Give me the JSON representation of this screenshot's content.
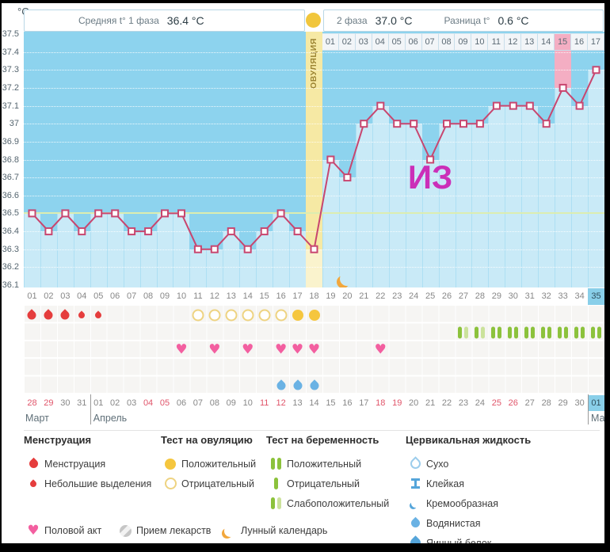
{
  "header": {
    "unit": "°C",
    "phase1_label": "Средняя t° 1 фаза",
    "phase1_value": "36.4 °C",
    "phase2_label": "2 фаза",
    "phase2_value": "37.0 °C",
    "diff_label": "Разница t°",
    "diff_value": "0.6 °C"
  },
  "chart_data": {
    "type": "line",
    "ylabel": "°C",
    "ylim": [
      36.1,
      37.5
    ],
    "yticks": [
      "37.5",
      "37.4",
      "37.3",
      "37.2",
      "37.1",
      "37",
      "36.9",
      "36.8",
      "36.7",
      "36.6",
      "36.5",
      "36.4",
      "36.3",
      "36.2",
      "36.1"
    ],
    "cycle_days": [
      "01",
      "02",
      "03",
      "04",
      "05",
      "06",
      "07",
      "08",
      "09",
      "10",
      "11",
      "12",
      "13",
      "14",
      "15",
      "16",
      "17",
      "18",
      "19",
      "20",
      "21",
      "22",
      "23",
      "24",
      "25",
      "26",
      "27",
      "28",
      "29",
      "30",
      "31",
      "32",
      "33",
      "34",
      "35"
    ],
    "temperatures": [
      36.5,
      36.4,
      36.5,
      36.4,
      36.5,
      36.5,
      36.4,
      36.4,
      36.5,
      36.5,
      36.3,
      36.3,
      36.4,
      36.3,
      36.4,
      36.5,
      36.4,
      36.3,
      36.8,
      36.7,
      37.0,
      37.1,
      37.0,
      37.0,
      36.8,
      37.0,
      37.0,
      37.0,
      37.1,
      37.1,
      37.1,
      37.0,
      37.2,
      37.1,
      37.3
    ],
    "coverline": 36.5,
    "ovulation_day": 18,
    "ovulation_label": "ОВУЛЯЦИЯ",
    "highlight_day": 33,
    "phase2_days": [
      "01",
      "02",
      "03",
      "04",
      "05",
      "06",
      "07",
      "08",
      "09",
      "10",
      "11",
      "12",
      "13",
      "14",
      "15",
      "16",
      "17"
    ],
    "phase2_highlight": "15",
    "current_day": "35",
    "moon_day": 20,
    "annotation": {
      "text": "ИЗ",
      "color": "#cb2fb8"
    },
    "symbols": {
      "menstruation": [
        {
          "day": 1,
          "intensity": "heavy"
        },
        {
          "day": 2,
          "intensity": "heavy"
        },
        {
          "day": 3,
          "intensity": "heavy"
        },
        {
          "day": 4,
          "intensity": "light"
        },
        {
          "day": 5,
          "intensity": "light"
        }
      ],
      "ovulation_tests": [
        {
          "day": 11,
          "result": "negative"
        },
        {
          "day": 12,
          "result": "negative"
        },
        {
          "day": 13,
          "result": "negative"
        },
        {
          "day": 14,
          "result": "negative"
        },
        {
          "day": 15,
          "result": "negative"
        },
        {
          "day": 16,
          "result": "negative"
        },
        {
          "day": 17,
          "result": "positive"
        },
        {
          "day": 18,
          "result": "positive"
        }
      ],
      "pregnancy_tests": [
        {
          "day": 27,
          "result": "weak_positive"
        },
        {
          "day": 28,
          "result": "weak_positive"
        },
        {
          "day": 29,
          "result": "positive"
        },
        {
          "day": 30,
          "result": "positive"
        },
        {
          "day": 31,
          "result": "positive"
        },
        {
          "day": 32,
          "result": "positive"
        },
        {
          "day": 33,
          "result": "positive"
        },
        {
          "day": 34,
          "result": "positive"
        },
        {
          "day": 35,
          "result": "positive"
        }
      ],
      "intercourse_days": [
        10,
        12,
        14,
        16,
        17,
        18,
        22
      ],
      "cervical_fluid": [
        {
          "day": 16,
          "type": "watery"
        },
        {
          "day": 17,
          "type": "watery"
        },
        {
          "day": 18,
          "type": "watery"
        }
      ]
    },
    "dates": [
      {
        "label": "28",
        "red": true
      },
      {
        "label": "29",
        "red": true
      },
      {
        "label": "30"
      },
      {
        "label": "31"
      },
      {
        "label": "01",
        "month_start": true
      },
      {
        "label": "02"
      },
      {
        "label": "03"
      },
      {
        "label": "04",
        "red": true
      },
      {
        "label": "05",
        "red": true
      },
      {
        "label": "06"
      },
      {
        "label": "07"
      },
      {
        "label": "08"
      },
      {
        "label": "09"
      },
      {
        "label": "10"
      },
      {
        "label": "11",
        "red": true
      },
      {
        "label": "12",
        "red": true
      },
      {
        "label": "13"
      },
      {
        "label": "14"
      },
      {
        "label": "15"
      },
      {
        "label": "16"
      },
      {
        "label": "17"
      },
      {
        "label": "18",
        "red": true
      },
      {
        "label": "19",
        "red": true
      },
      {
        "label": "20"
      },
      {
        "label": "21"
      },
      {
        "label": "22"
      },
      {
        "label": "23"
      },
      {
        "label": "24"
      },
      {
        "label": "25",
        "red": true
      },
      {
        "label": "26",
        "red": true
      },
      {
        "label": "27"
      },
      {
        "label": "28"
      },
      {
        "label": "29"
      },
      {
        "label": "30"
      },
      {
        "label": "01",
        "month_start": true,
        "today": true
      }
    ],
    "months": [
      {
        "name": "Март",
        "start_day": 1
      },
      {
        "name": "Апрель",
        "start_day": 5
      },
      {
        "name": "Май",
        "start_day": 35
      }
    ]
  },
  "legend": {
    "menstruation": {
      "title": "Менструация",
      "items": [
        {
          "icon": "drop-large",
          "label": "Менструация"
        },
        {
          "icon": "drop-small",
          "label": "Небольшие выделения"
        }
      ]
    },
    "ovulation_test": {
      "title": "Тест на овуляцию",
      "items": [
        {
          "icon": "circle-filled",
          "label": "Положительный"
        },
        {
          "icon": "circle-outline",
          "label": "Отрицательный"
        }
      ]
    },
    "pregnancy_test": {
      "title": "Тест на беременность",
      "items": [
        {
          "icon": "two-green-bars",
          "label": "Положительный"
        },
        {
          "icon": "one-green-bar",
          "label": "Отрицательный"
        },
        {
          "icon": "dark-light-bars",
          "label": "Слабоположительный"
        }
      ]
    },
    "cervical_fluid": {
      "title": "Цервикальная жидкость",
      "items": [
        {
          "icon": "drop-outline",
          "label": "Сухо"
        },
        {
          "icon": "ibeam",
          "label": "Клейкая"
        },
        {
          "icon": "crescent-blob",
          "label": "Кремообразная"
        },
        {
          "icon": "drop-small-blue",
          "label": "Водянистая"
        },
        {
          "icon": "drop-large-blue",
          "label": "Яичный белок"
        }
      ]
    },
    "footer": [
      {
        "icon": "heart",
        "label": "Половой акт"
      },
      {
        "icon": "pill",
        "label": "Прием лекарств"
      },
      {
        "icon": "moon",
        "label": "Лунный календарь"
      }
    ]
  },
  "colors": {
    "plot_bg": "#8dd3ee",
    "column_fill": "#c9eaf7",
    "line": "#c8466f",
    "coverline": "#dcedb0",
    "ovulation_band": "#f6e9a4",
    "pink_highlight": "#f4aec3",
    "today_bg": "#89cfe9",
    "red_date": "#e0556a",
    "menstruation": "#e53d3d",
    "ovulation_test": "#f5c63e",
    "pregnancy_positive": "#8cc23c",
    "pregnancy_weak": "#cbe29b",
    "intercourse": "#f35fa0",
    "cervical_fluid": "#6ab2e4",
    "moon": "#f2a73c",
    "annotation": "#cb2fb8"
  }
}
